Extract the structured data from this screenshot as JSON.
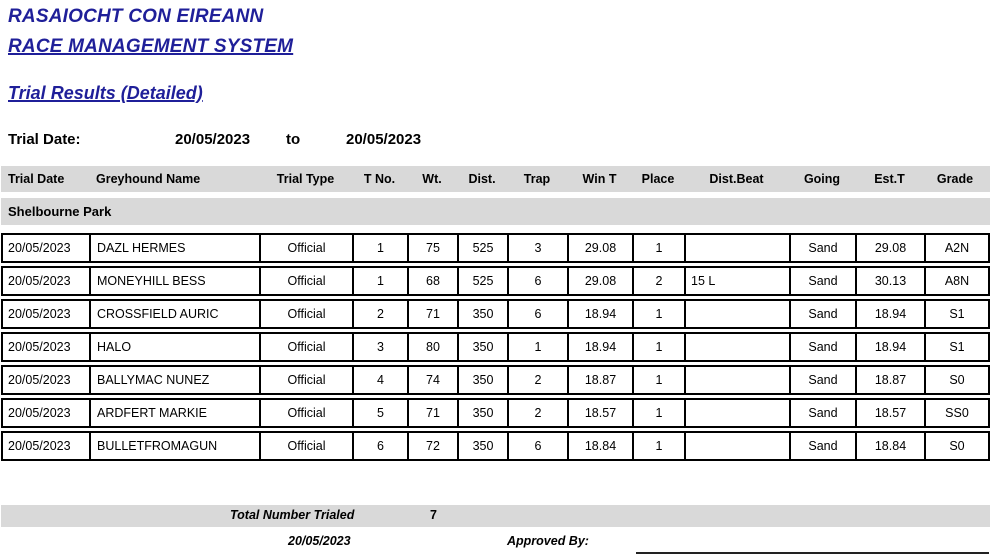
{
  "colors": {
    "accent": "#1f1f99",
    "band_gray": "#d9d9d9"
  },
  "header": {
    "org_title": "RASAIOCHT CON EIREANN",
    "system_title": "RACE MANAGEMENT SYSTEM",
    "report_title": "Trial Results (Detailed)"
  },
  "filter": {
    "label": "Trial Date:",
    "from_date": "20/05/2023",
    "to_label": "to",
    "to_date": "20/05/2023"
  },
  "table": {
    "columns": [
      "Trial Date",
      "Greyhound Name",
      "Trial Type",
      "T No.",
      "Wt.",
      "Dist.",
      "Trap",
      "Win T",
      "Place",
      "Dist.Beat",
      "Going",
      "Est.T",
      "Grade"
    ],
    "section": "Shelbourne Park",
    "rows": [
      [
        "20/05/2023",
        "DAZL HERMES",
        "Official",
        "1",
        "75",
        "525",
        "3",
        "29.08",
        "1",
        "",
        "Sand",
        "29.08",
        "A2N"
      ],
      [
        "20/05/2023",
        "MONEYHILL BESS",
        "Official",
        "1",
        "68",
        "525",
        "6",
        "29.08",
        "2",
        "15 L",
        "Sand",
        "30.13",
        "A8N"
      ],
      [
        "20/05/2023",
        "CROSSFIELD AURIC",
        "Official",
        "2",
        "71",
        "350",
        "6",
        "18.94",
        "1",
        "",
        "Sand",
        "18.94",
        "S1"
      ],
      [
        "20/05/2023",
        "HALO",
        "Official",
        "3",
        "80",
        "350",
        "1",
        "18.94",
        "1",
        "",
        "Sand",
        "18.94",
        "S1"
      ],
      [
        "20/05/2023",
        "BALLYMAC NUNEZ",
        "Official",
        "4",
        "74",
        "350",
        "2",
        "18.87",
        "1",
        "",
        "Sand",
        "18.87",
        "S0"
      ],
      [
        "20/05/2023",
        "ARDFERT MARKIE",
        "Official",
        "5",
        "71",
        "350",
        "2",
        "18.57",
        "1",
        "",
        "Sand",
        "18.57",
        "SS0"
      ],
      [
        "20/05/2023",
        "BULLETFROMAGUN",
        "Official",
        "6",
        "72",
        "350",
        "6",
        "18.84",
        "1",
        "",
        "Sand",
        "18.84",
        "S0"
      ]
    ]
  },
  "footer": {
    "total_label": "Total Number Trialed",
    "total_value": "7",
    "report_date": "20/05/2023",
    "approved_label": "Approved By:"
  }
}
